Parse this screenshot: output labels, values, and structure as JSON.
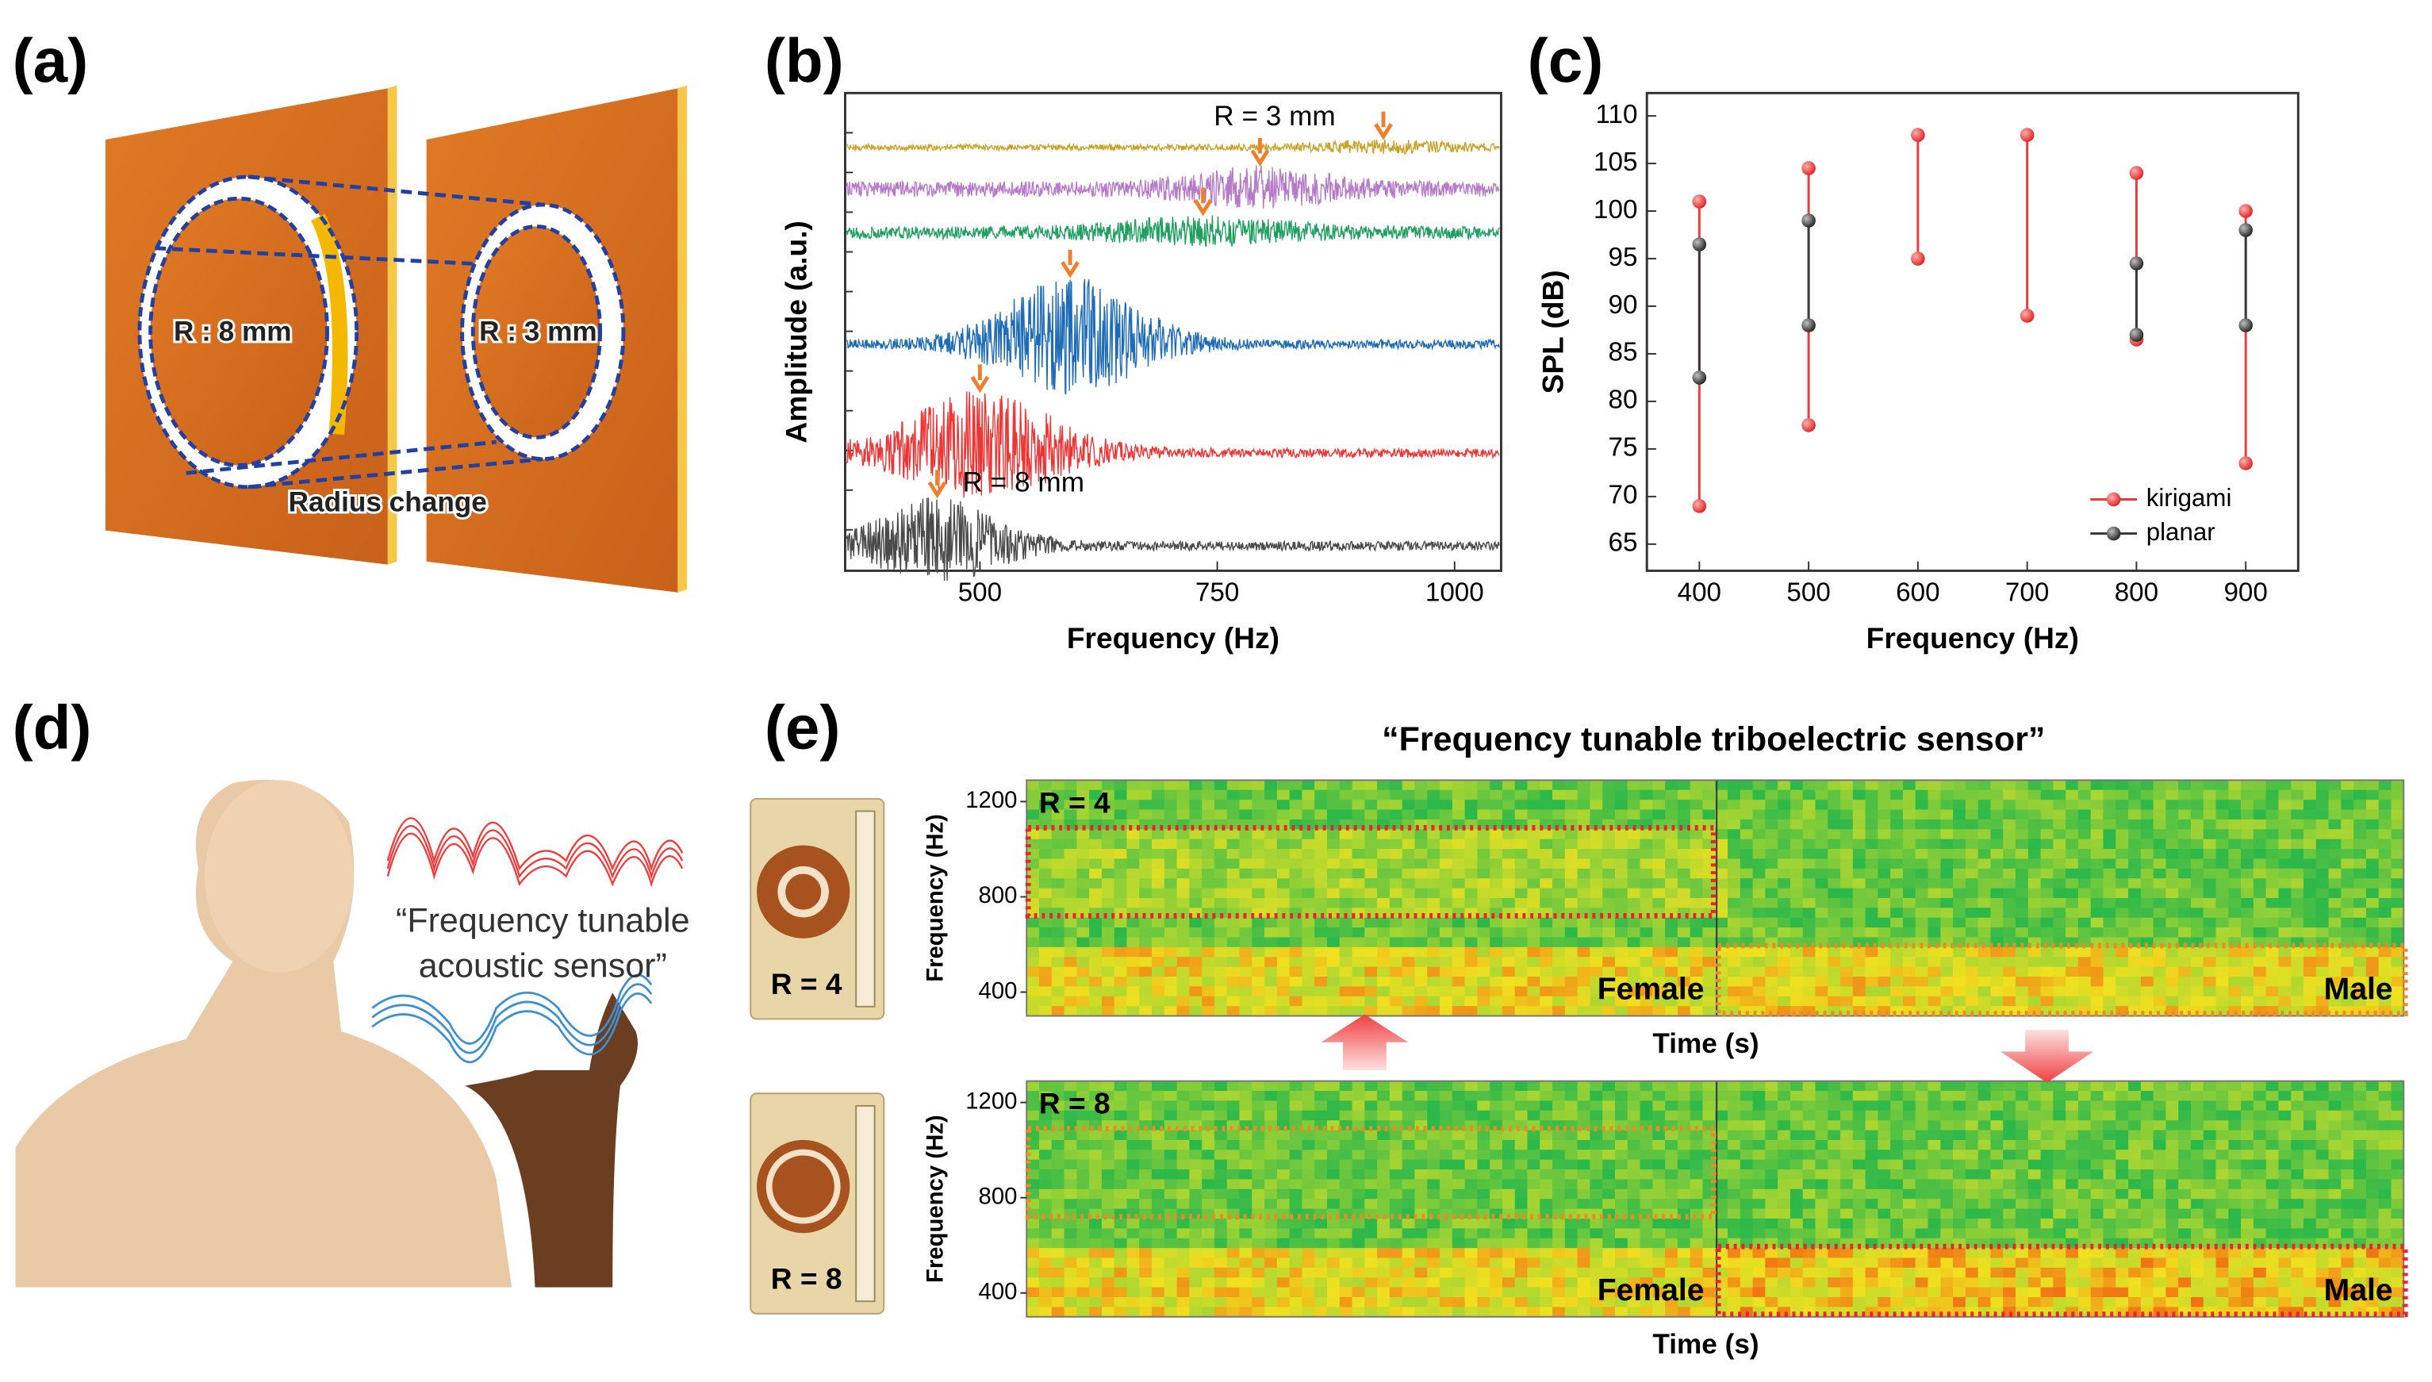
{
  "panel_labels": [
    "(a)",
    "(b)",
    "(c)",
    "(d)",
    "(e)"
  ],
  "panel_a": {
    "labels": [
      "R : 8 mm",
      "R : 3 mm",
      "Radius change"
    ]
  },
  "chart_data": [
    {
      "type": "spectrum",
      "xlabel": "Frequency (Hz)",
      "ylabel": "Amplitude (a.u.)",
      "xlim": [
        358,
        1049
      ],
      "xticks": [
        500,
        750,
        1000
      ],
      "annotations": [
        "R = 3 mm",
        "R = 8 mm"
      ],
      "arrow_color": "#f07e2a",
      "series": [
        {
          "color": "#c9a227",
          "peak": 925
        },
        {
          "color": "#b57ac8",
          "peak": 795
        },
        {
          "color": "#1fa060",
          "peak": 735
        },
        {
          "color": "#1d6cb8",
          "peak": 595
        },
        {
          "color": "#ee3434",
          "peak": 500
        },
        {
          "color": "#4a4a4a",
          "peak": 455
        }
      ]
    },
    {
      "type": "range",
      "xlabel": "Frequency (Hz)",
      "ylabel": "SPL (dB)",
      "x": [
        400,
        500,
        600,
        700,
        800,
        900
      ],
      "xlim": [
        352,
        948
      ],
      "ylim": [
        62.2,
        112.4
      ],
      "xticks": [
        400,
        500,
        600,
        700,
        800,
        900
      ],
      "yticks": [
        65,
        70,
        75,
        80,
        85,
        90,
        95,
        100,
        105,
        110
      ],
      "legend": "lower right",
      "series": [
        {
          "name": "kirigami",
          "color": "#f03a3a",
          "low": [
            69,
            77.5,
            95,
            89,
            86.5,
            73.5
          ],
          "high": [
            101,
            104.5,
            108,
            108,
            104,
            100
          ]
        },
        {
          "name": "planar",
          "color": "#3a3a3a",
          "low": [
            82.5,
            88,
            null,
            null,
            87,
            88
          ],
          "high": [
            96.5,
            99,
            null,
            null,
            94.5,
            98
          ]
        }
      ]
    }
  ],
  "panel_d": {
    "text": [
      "“Frequency tunable",
      "acoustic sensor”"
    ]
  },
  "panel_e": {
    "title": "“Frequency tunable triboelectric sensor”",
    "ylabel": "Frequency (Hz)",
    "xlabel": "Time (s)",
    "ylim": [
      300,
      1290
    ],
    "yticks": [
      400,
      800,
      1200
    ],
    "spectrograms": [
      {
        "device_label": "R = 4",
        "label": "R = 4",
        "left_label": "Female",
        "right_label": "Male"
      },
      {
        "device_label": "R = 8",
        "label": "R = 8",
        "left_label": "Female",
        "right_label": "Male"
      }
    ]
  }
}
